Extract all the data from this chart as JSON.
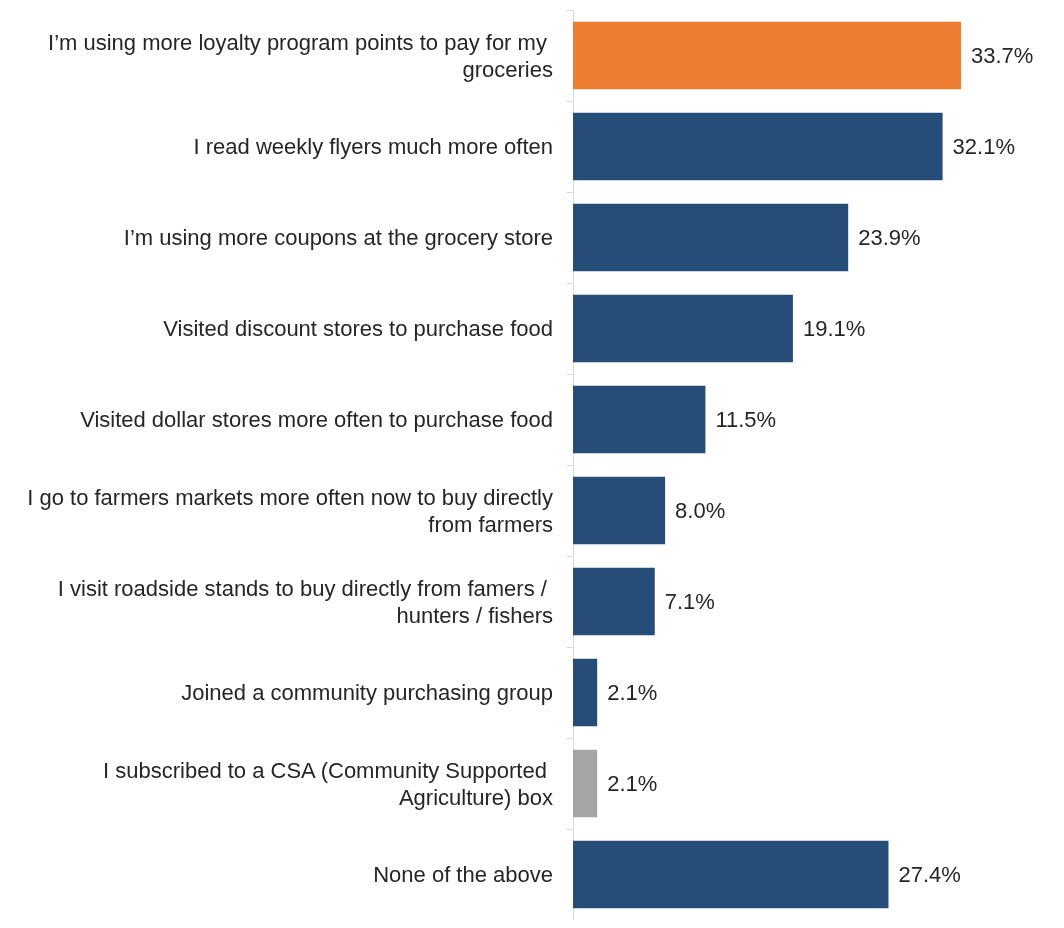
{
  "chart_data": {
    "type": "bar",
    "orientation": "horizontal",
    "categories": [
      "I’m using more loyalty program points to pay for my groceries",
      "I read weekly flyers much more often",
      "I’m using more coupons at the grocery store",
      "Visited discount stores to purchase food",
      "Visited dollar stores more often to purchase food",
      "I go to farmers markets more often now to buy directly from farmers",
      "I visit roadside stands to buy directly from famers / hunters / fishers",
      "Joined a community purchasing group",
      "I subscribed to a CSA (Community Supported Agriculture) box",
      "None of the above"
    ],
    "values": [
      33.7,
      32.1,
      23.9,
      19.1,
      11.5,
      8.0,
      7.1,
      2.1,
      2.1,
      27.4
    ],
    "colors": [
      "#ed7d31",
      "#264d78",
      "#264d78",
      "#264d78",
      "#264d78",
      "#264d78",
      "#264d78",
      "#264d78",
      "#a6a6a6",
      "#264d78"
    ],
    "value_labels": [
      "33.7%",
      "32.1%",
      "23.9%",
      "19.1%",
      "11.5%",
      "8.0%",
      "7.1%",
      "2.1%",
      "2.1%",
      "27.4%"
    ],
    "tick_labels": "y",
    "grid": false
  }
}
